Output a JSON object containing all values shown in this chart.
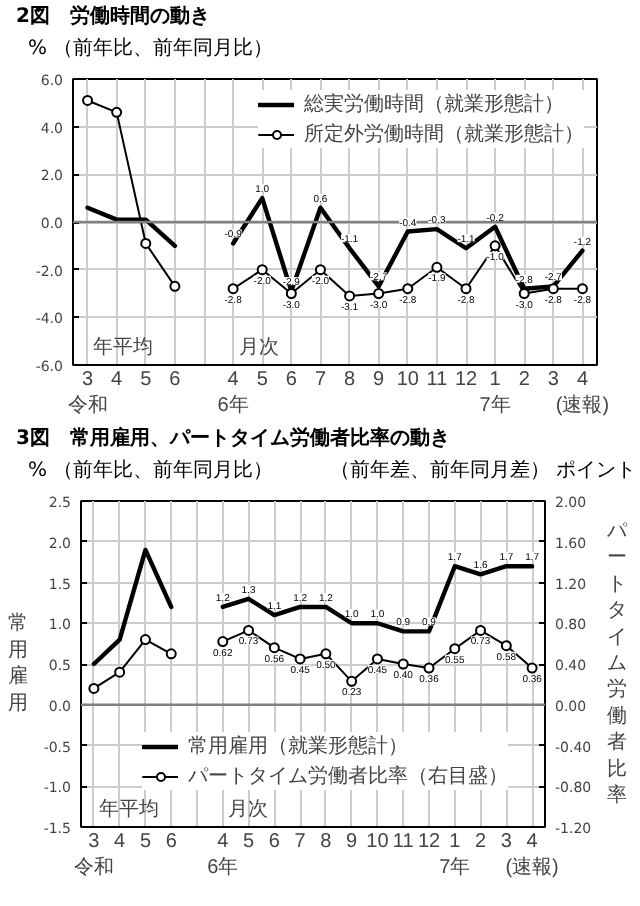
{
  "chart_data": [
    {
      "type": "line",
      "title": "2図　労働時間の動き",
      "subtitle": "（前年比、前年同月比）",
      "annotations": [
        "%",
        "年平均",
        "月次"
      ],
      "categories": [
        "3\n令和",
        "4",
        "5",
        "6",
        null,
        "4\n6年",
        "5",
        "6",
        "7",
        "8",
        "9",
        "10",
        "11",
        "12",
        "1\n7年",
        "2",
        "3",
        "4 (速報)"
      ],
      "series": [
        {
          "name": "総実労働時間（就業形態計）",
          "color": "#000000",
          "marker": "none",
          "values": [
            0.6,
            0.1,
            0.1,
            -1.0,
            null,
            -0.9,
            1.0,
            -2.9,
            0.6,
            -1.1,
            -2.7,
            -0.4,
            -0.3,
            -1.1,
            -0.2,
            -2.8,
            -2.7,
            -1.2
          ],
          "value_labels": [
            null,
            null,
            null,
            null,
            null,
            "-0.9",
            "1.0",
            "-2.9",
            "0.6",
            "-1.1",
            "-2.7",
            "-0.4",
            "-0.3",
            "-1.1",
            "-0.2",
            "-2.8",
            "-2.7",
            "-1.2"
          ]
        },
        {
          "name": "所定外労働時間（就業形態計）",
          "color": "#000000",
          "marker": "circle",
          "values": [
            5.1,
            4.6,
            -0.9,
            -2.7,
            null,
            -2.8,
            -2.0,
            -3.0,
            -2.0,
            -3.1,
            -3.0,
            -2.8,
            -1.9,
            -2.8,
            -1.0,
            -3.0,
            -2.8,
            -2.8
          ],
          "value_labels": [
            null,
            null,
            null,
            null,
            null,
            "-2.8",
            "-2.0",
            "-3.0",
            "-2.0",
            "-3.1",
            "-3.0",
            "-2.8",
            "-1.9",
            "-2.8",
            "-1.0",
            "-3.0",
            "-2.8",
            "-2.8"
          ]
        }
      ],
      "ylim": [
        -6,
        6
      ],
      "yticks": [
        {
          "value": -6,
          "label": "-6.0"
        },
        {
          "value": -4,
          "label": "-4.0"
        },
        {
          "value": -2,
          "label": "-2.0"
        },
        {
          "value": 0,
          "label": "0.0"
        },
        {
          "value": 2,
          "label": "2.0"
        },
        {
          "value": 4,
          "label": "4.0"
        },
        {
          "value": 6,
          "label": "6.0"
        }
      ],
      "ref_lines": [
        {
          "axis": "y",
          "value": 0,
          "color": "#808080"
        }
      ],
      "grid": true,
      "legend": "top right"
    },
    {
      "type": "line",
      "title": "3図　常用雇用、パートタイム労働者比率の動き",
      "subtitle": "（前年比、前年同月比）",
      "ylabel": "常用雇用",
      "y2label": "パートタイム労働者比率",
      "annotations": [
        "%",
        "（前年差、前年同月差）",
        "ポイント",
        "年平均",
        "月次"
      ],
      "categories": [
        "3\n令和",
        "4",
        "5",
        "6",
        null,
        "4\n6年",
        "5",
        "6",
        "7",
        "8",
        "9",
        "10",
        "11",
        "12",
        "1\n7年",
        "2",
        "3",
        "4 (速報)"
      ],
      "series": [
        {
          "name": "常用雇用（就業形態計）",
          "color": "#000000",
          "marker": "none",
          "values": [
            0.5,
            0.8,
            1.9,
            1.2,
            null,
            1.2,
            1.3,
            1.1,
            1.2,
            1.2,
            1.0,
            1.0,
            0.9,
            0.9,
            1.7,
            1.6,
            1.7,
            1.7
          ],
          "value_labels": [
            null,
            null,
            null,
            null,
            null,
            "1.2",
            "1.3",
            "1.1",
            "1.2",
            "1.2",
            "1.0",
            "1.0",
            "0.9",
            "0.9",
            "1.7",
            "1.6",
            "1.7",
            "1.7"
          ]
        },
        {
          "name": "パートタイム労働者比率（右目盛）",
          "color": "#000000",
          "marker": "circle",
          "axis": "y2",
          "values": [
            0.16,
            0.32,
            0.64,
            0.5,
            null,
            0.62,
            0.73,
            0.56,
            0.45,
            0.5,
            0.23,
            0.45,
            0.4,
            0.36,
            0.55,
            0.73,
            0.58,
            0.36
          ],
          "value_labels": [
            null,
            null,
            null,
            null,
            null,
            "0.62",
            "0.73",
            "0.56",
            "0.45",
            "0.50",
            "0.23",
            "0.45",
            "0.40",
            "0.36",
            "0.55",
            "0.73",
            "0.58",
            "0.36"
          ]
        }
      ],
      "ylim": [
        -1.5,
        2.5
      ],
      "yticks": [
        {
          "value": -1.5,
          "label": "-1.5"
        },
        {
          "value": -1,
          "label": "-1.0"
        },
        {
          "value": -0.5,
          "label": "-0.5"
        },
        {
          "value": 0,
          "label": "0.0"
        },
        {
          "value": 0.5,
          "label": "0.5"
        },
        {
          "value": 1,
          "label": "1.0"
        },
        {
          "value": 1.5,
          "label": "1.5"
        },
        {
          "value": 2,
          "label": "2.0"
        },
        {
          "value": 2.5,
          "label": "2.5"
        }
      ],
      "y2lim": [
        -1.2,
        2.0
      ],
      "y2ticks": [
        {
          "value": -1.2,
          "label": "-1.20"
        },
        {
          "value": -0.8,
          "label": "-0.80"
        },
        {
          "value": -0.4,
          "label": "-0.40"
        },
        {
          "value": 0,
          "label": "0.00"
        },
        {
          "value": 0.4,
          "label": "0.40"
        },
        {
          "value": 0.8,
          "label": "0.80"
        },
        {
          "value": 1.2,
          "label": "1.20"
        },
        {
          "value": 1.6,
          "label": "1.60"
        },
        {
          "value": 2.0,
          "label": "2.00"
        }
      ],
      "ref_lines": [
        {
          "axis": "y",
          "value": 0,
          "color": "#808080"
        }
      ],
      "grid": true,
      "legend": "bottom right"
    }
  ]
}
